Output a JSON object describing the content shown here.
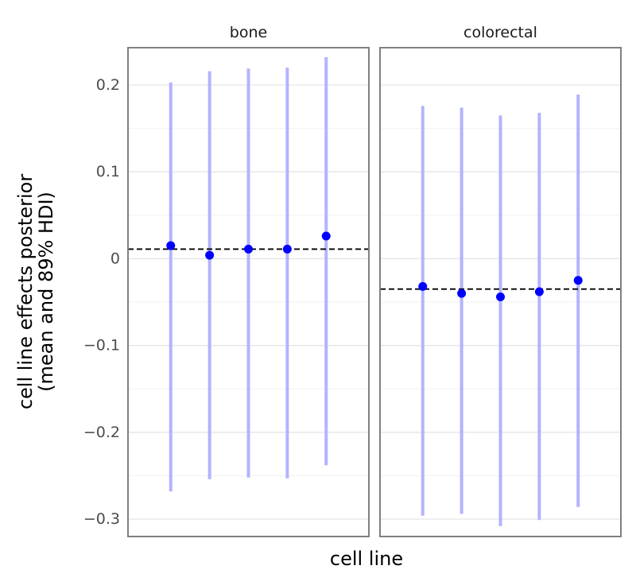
{
  "chart_data": {
    "type": "scatter",
    "title": "",
    "xlabel": "cell line",
    "ylabel": [
      "cell line effects posterior",
      "(mean and 89% HDI)"
    ],
    "ylim": [
      -0.32,
      0.243
    ],
    "yticks": [
      0.2,
      0.1,
      0,
      -0.1,
      -0.2,
      -0.3
    ],
    "ytick_labels": [
      "0.2",
      "0.1",
      "0",
      "−0.1",
      "−0.2",
      "−0.3"
    ],
    "grid": true,
    "point_color": "#0000ff",
    "interval_color": "#b3b3ff",
    "reference_line_color": "#000000",
    "facets": [
      {
        "label": "bone",
        "reference_line": 0.011,
        "mean": [
          0.015,
          0.004,
          0.011,
          0.011,
          0.026
        ],
        "hdi_low": [
          -0.268,
          -0.254,
          -0.252,
          -0.253,
          -0.238
        ],
        "hdi_high": [
          0.203,
          0.216,
          0.219,
          0.22,
          0.232
        ]
      },
      {
        "label": "colorectal",
        "reference_line": -0.035,
        "mean": [
          -0.032,
          -0.04,
          -0.044,
          -0.038,
          -0.025
        ],
        "hdi_low": [
          -0.296,
          -0.294,
          -0.308,
          -0.301,
          -0.286
        ],
        "hdi_high": [
          0.176,
          0.174,
          0.165,
          0.168,
          0.189
        ]
      }
    ]
  }
}
